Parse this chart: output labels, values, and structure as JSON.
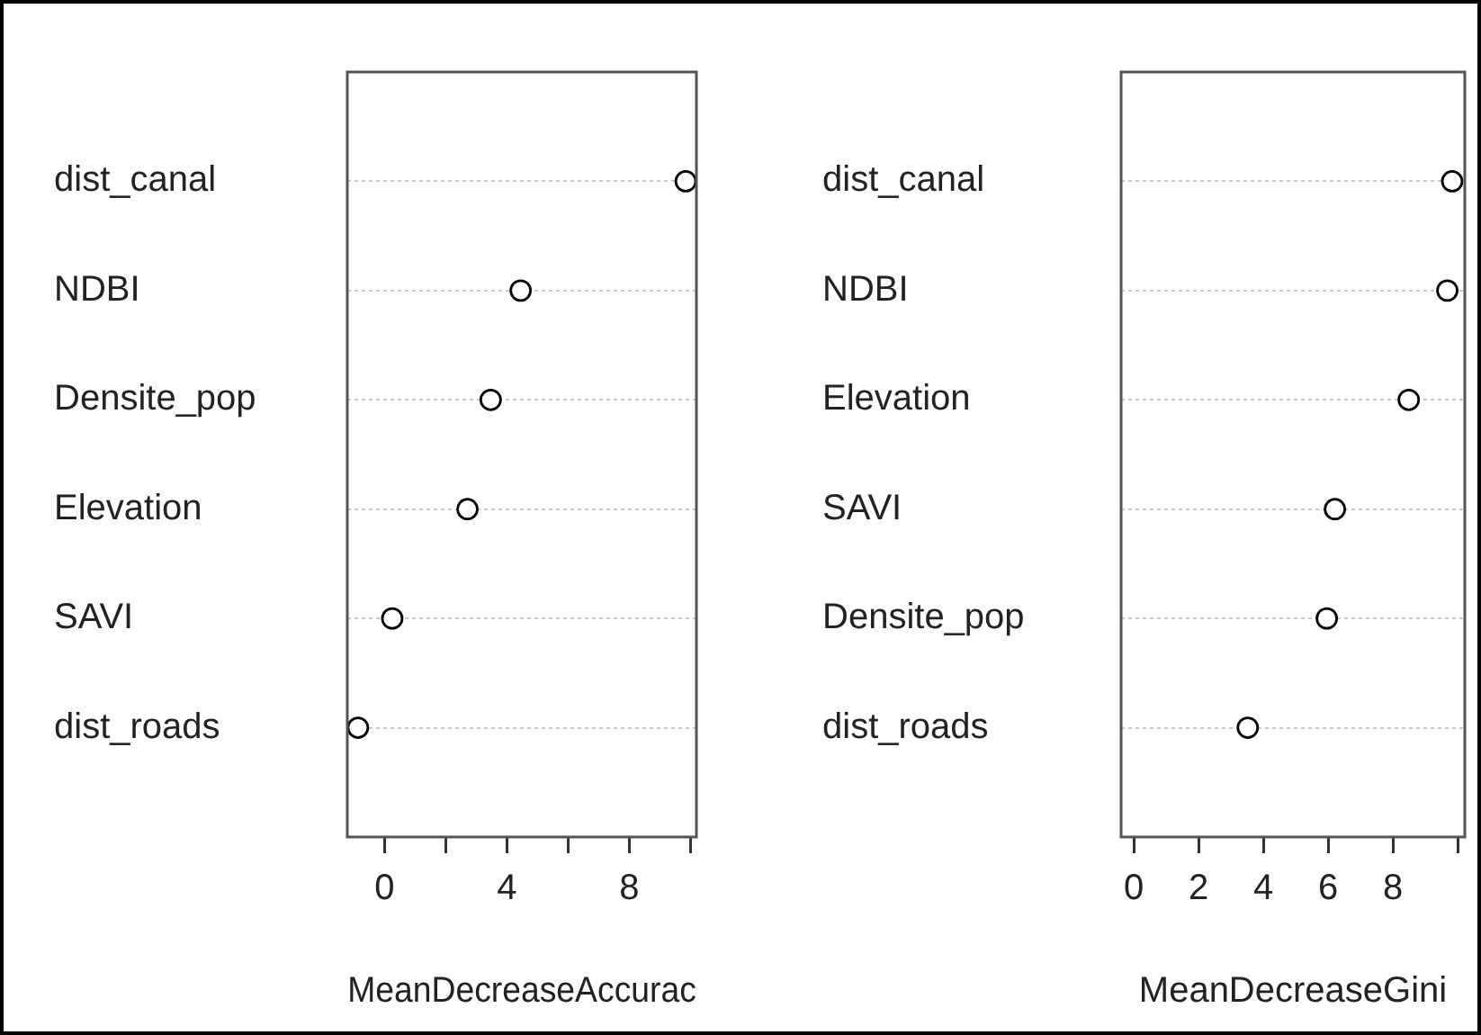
{
  "chart_data": [
    {
      "type": "scatter",
      "orientation": "horizontal",
      "categories": [
        "dist_canal",
        "NDBI",
        "Densite_pop",
        "Elevation",
        "SAVI",
        "dist_roads"
      ],
      "values": [
        9.85,
        4.45,
        3.47,
        2.71,
        0.25,
        -0.87
      ],
      "color": "#000000",
      "marker": "circle",
      "xlim": [
        -1.22,
        10.2
      ],
      "xticks": [
        0,
        {
          "value": 2,
          "label": null
        },
        4,
        {
          "value": 6,
          "label": null
        },
        8,
        {
          "value": 10,
          "label": null
        }
      ],
      "xlabel": "MeanDecreaseAccurac",
      "grid": "y"
    },
    {
      "type": "scatter",
      "orientation": "horizontal",
      "categories": [
        "dist_canal",
        "NDBI",
        "Elevation",
        "SAVI",
        "Densite_pop",
        "dist_roads"
      ],
      "values": [
        9.83,
        9.68,
        8.49,
        6.21,
        5.96,
        3.52
      ],
      "color": "#000000",
      "marker": "circle",
      "xlim": [
        -0.39,
        10.22
      ],
      "xticks": [
        0,
        2,
        4,
        6,
        8,
        {
          "value": 10,
          "label": null
        }
      ],
      "xlabel": "MeanDecreaseGini",
      "grid": "y"
    }
  ]
}
